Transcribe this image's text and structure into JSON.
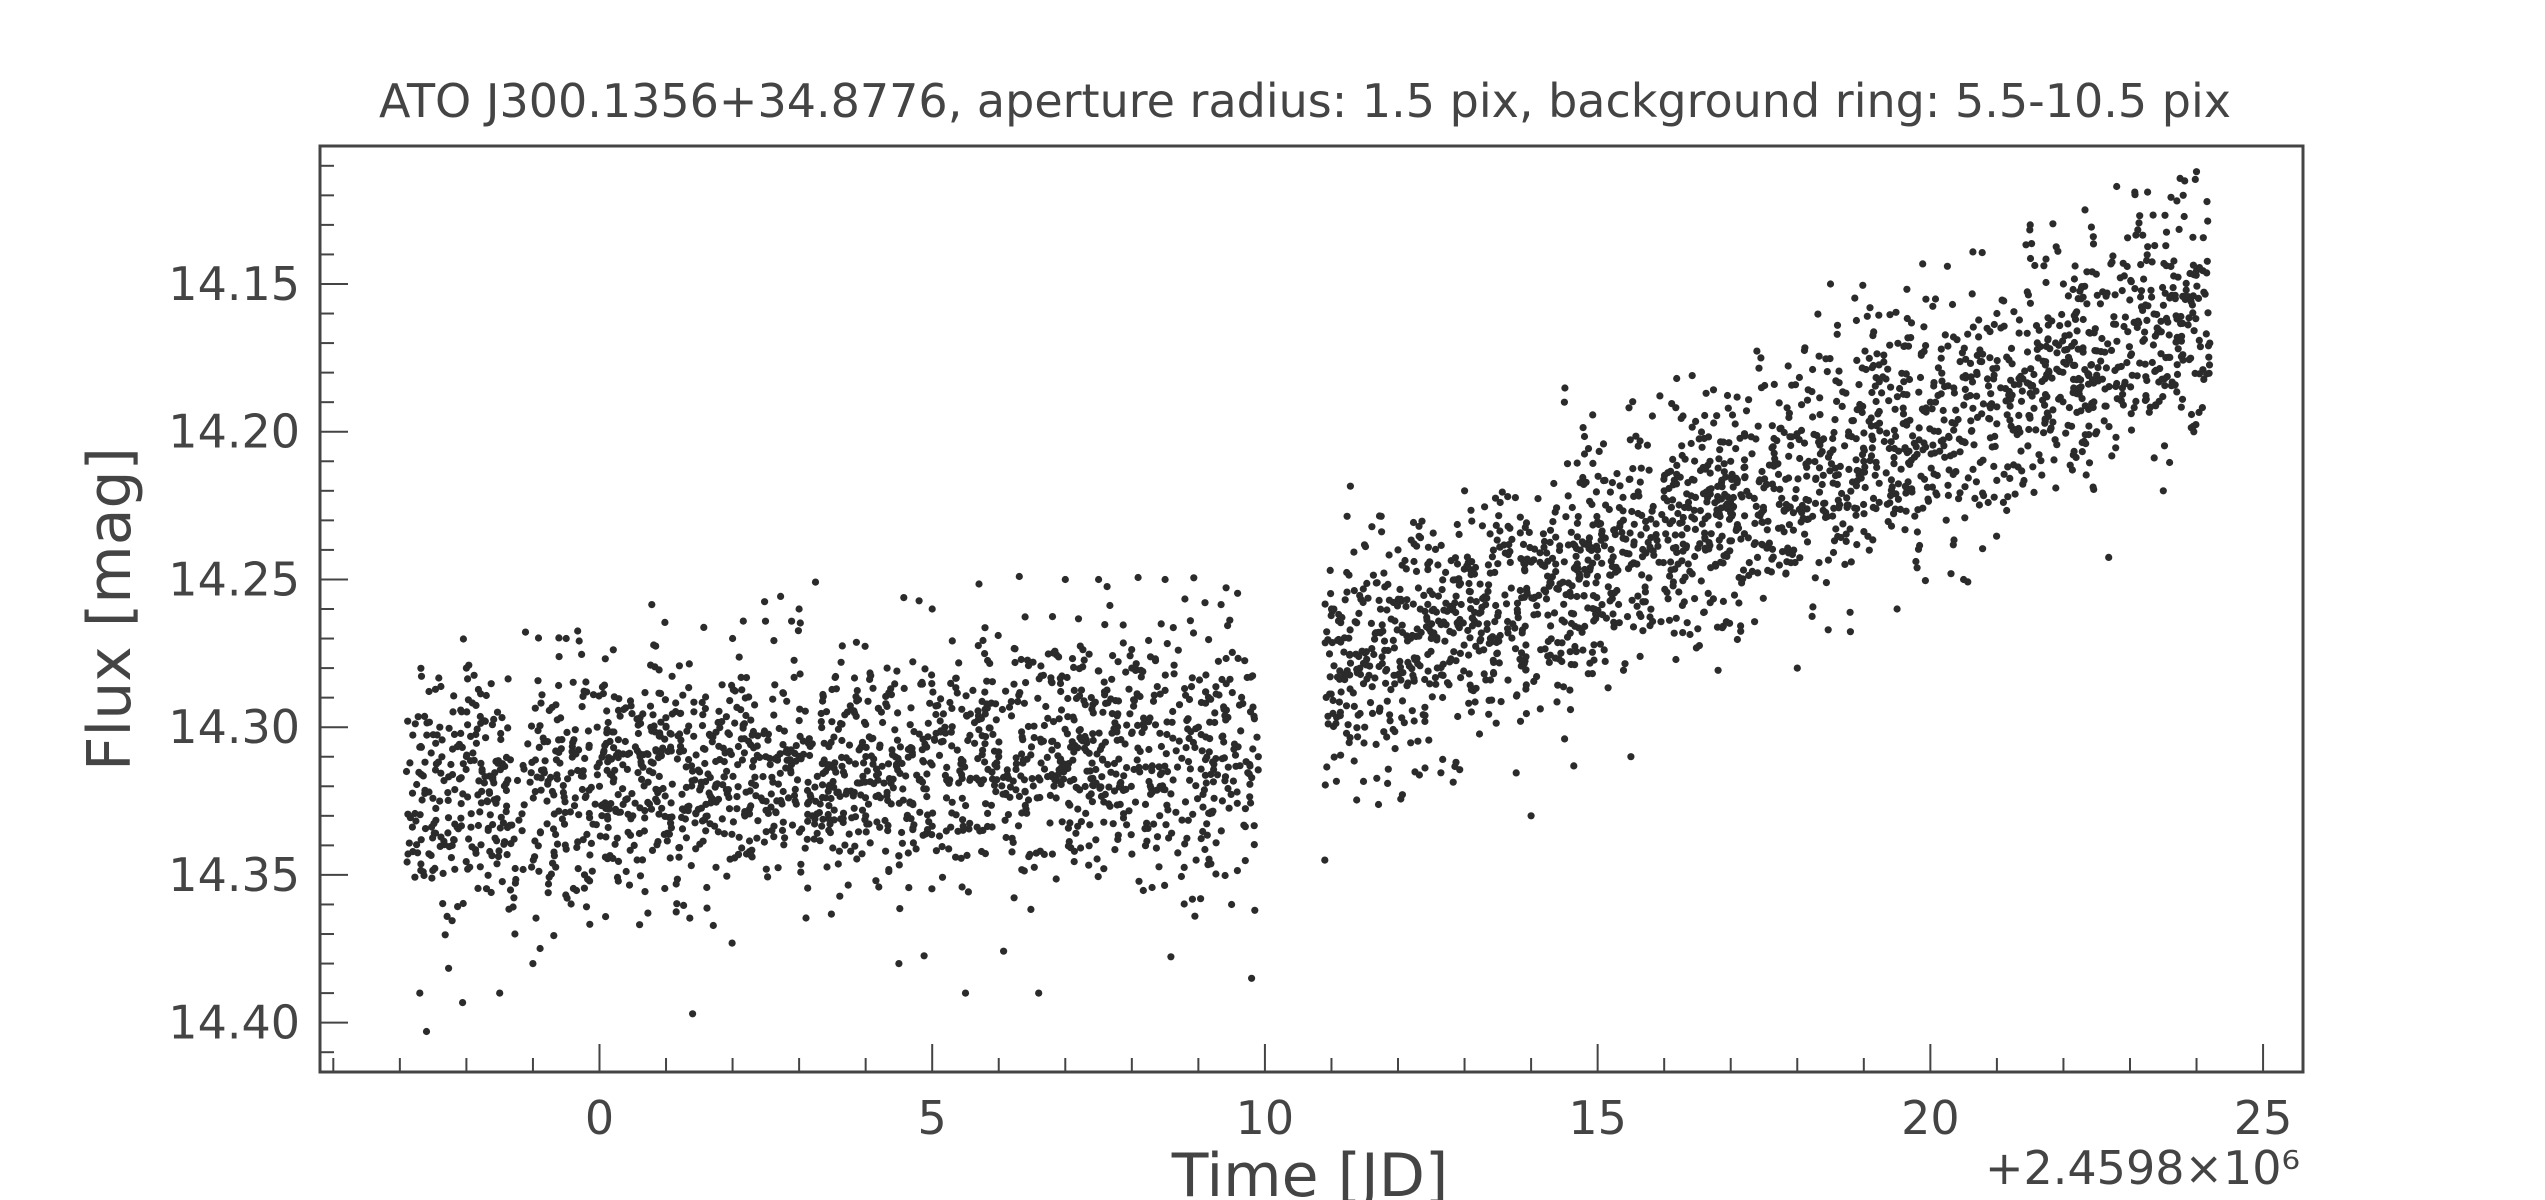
{
  "chart_data": {
    "type": "scatter",
    "title": "ATO J300.1356+34.8776, aperture radius: 1.5 pix, background ring: 5.5-10.5 pix",
    "xlabel": "Time [JD]",
    "ylabel": "Flux [mag]",
    "x_offset_label": "+2.4598×10⁶",
    "x_offset_value": 2459800,
    "xlim": [
      -4.2,
      25.6
    ],
    "ylim": [
      14.4167,
      14.1033
    ],
    "y_inverted": true,
    "x_ticks": [
      0,
      5,
      10,
      15,
      20,
      25
    ],
    "x_tick_labels": [
      "0",
      "5",
      "10",
      "15",
      "20",
      "25"
    ],
    "y_ticks": [
      14.15,
      14.2,
      14.25,
      14.3,
      14.35,
      14.4
    ],
    "y_tick_labels": [
      "14.15",
      "14.20",
      "14.25",
      "14.30",
      "14.35",
      "14.40"
    ],
    "grid": false,
    "legend": "none",
    "marker_color": "#2b2b2b",
    "segments": [
      {
        "x_range": [
          -2.9,
          9.9
        ],
        "n_points": 1900,
        "mean_start": 14.322,
        "mean_end": 14.305,
        "spread": 0.021,
        "y_min": 14.403,
        "y_max": 14.249
      },
      {
        "x_range": [
          10.9,
          24.2
        ],
        "n_points": 2100,
        "mean_start": 14.283,
        "mean_end": 14.158,
        "spread": 0.021,
        "y_min": 14.345,
        "y_max": 14.112
      }
    ],
    "series": [
      {
        "values_sample": [
          [
            -2.9,
            14.315
          ],
          [
            -2.7,
            14.39
          ],
          [
            -2.6,
            14.403
          ],
          [
            -2.4,
            14.3
          ],
          [
            -2.0,
            14.28
          ],
          [
            -1.5,
            14.39
          ],
          [
            -1.0,
            14.38
          ],
          [
            -0.5,
            14.27
          ],
          [
            0.0,
            14.32
          ],
          [
            0.5,
            14.33
          ],
          [
            1.0,
            14.3
          ],
          [
            1.4,
            14.397
          ],
          [
            2.0,
            14.27
          ],
          [
            2.5,
            14.31
          ],
          [
            3.0,
            14.26
          ],
          [
            4.0,
            14.33
          ],
          [
            4.5,
            14.38
          ],
          [
            5.0,
            14.26
          ],
          [
            5.5,
            14.39
          ],
          [
            6.0,
            14.31
          ],
          [
            6.6,
            14.39
          ],
          [
            7.0,
            14.25
          ],
          [
            7.5,
            14.25
          ],
          [
            8.0,
            14.28
          ],
          [
            8.5,
            14.25
          ],
          [
            9.0,
            14.3
          ],
          [
            9.5,
            14.36
          ],
          [
            9.8,
            14.385
          ],
          [
            9.9,
            14.31
          ],
          [
            10.9,
            14.345
          ],
          [
            11.0,
            14.26
          ],
          [
            11.5,
            14.3
          ],
          [
            12.0,
            14.24
          ],
          [
            12.5,
            14.27
          ],
          [
            13.0,
            14.22
          ],
          [
            13.5,
            14.27
          ],
          [
            14.0,
            14.33
          ],
          [
            14.5,
            14.19
          ],
          [
            15.0,
            14.24
          ],
          [
            15.5,
            14.31
          ],
          [
            16.0,
            14.22
          ],
          [
            17.0,
            14.21
          ],
          [
            18.0,
            14.28
          ],
          [
            18.5,
            14.15
          ],
          [
            19.0,
            14.21
          ],
          [
            19.5,
            14.26
          ],
          [
            20.0,
            14.19
          ],
          [
            20.5,
            14.25
          ],
          [
            21.0,
            14.16
          ],
          [
            21.5,
            14.13
          ],
          [
            22.0,
            14.15
          ],
          [
            22.5,
            14.2
          ],
          [
            22.8,
            14.117
          ],
          [
            23.5,
            14.22
          ],
          [
            23.8,
            14.12
          ],
          [
            24.0,
            14.112
          ],
          [
            24.2,
            14.17
          ]
        ]
      }
    ]
  }
}
